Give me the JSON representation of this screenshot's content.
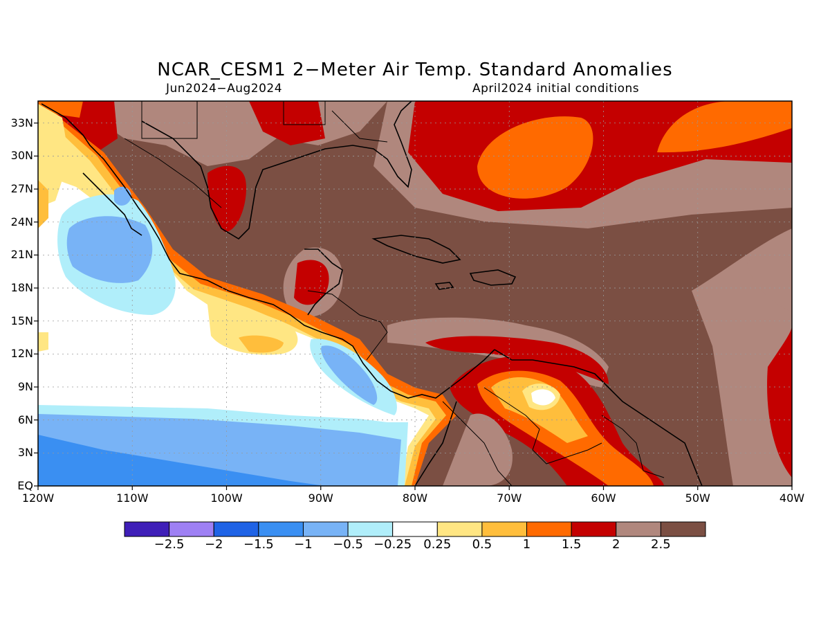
{
  "title": "NCAR_CESM1 2−Meter Air Temp. Standard Anomalies",
  "subtitle_left": "Jun2024−Aug2024",
  "subtitle_right": "April2024 initial conditions",
  "lat_ticks": [
    "33N",
    "30N",
    "27N",
    "24N",
    "21N",
    "18N",
    "15N",
    "12N",
    "9N",
    "6N",
    "3N",
    "EQ"
  ],
  "lat_values": [
    33,
    30,
    27,
    24,
    21,
    18,
    15,
    12,
    9,
    6,
    3,
    0
  ],
  "lon_ticks": [
    "120W",
    "110W",
    "100W",
    "90W",
    "80W",
    "70W",
    "60W",
    "50W",
    "40W"
  ],
  "lon_values": [
    -120,
    -110,
    -100,
    -90,
    -80,
    -70,
    -60,
    -50,
    -40
  ],
  "extent": {
    "lon": [
      -120,
      -40
    ],
    "lat": [
      0,
      35
    ]
  },
  "colorbar": {
    "colors": [
      "#3f1fb8",
      "#9e80f4",
      "#1f63e6",
      "#3a8ff2",
      "#78b3f6",
      "#b0eefa",
      "#ffffff",
      "#ffe683",
      "#ffbe3c",
      "#ff6a00",
      "#c40000",
      "#b0877d",
      "#7b4f43"
    ],
    "labels": [
      "−2.5",
      "−2",
      "−1.5",
      "−1",
      "−0.5",
      "−0.25",
      "0.25",
      "0.5",
      "1",
      "1.5",
      "2",
      "2.5"
    ]
  },
  "region_names": [
    "strong-warm-region",
    "warm-region",
    "cool-region",
    "neutral-region"
  ]
}
